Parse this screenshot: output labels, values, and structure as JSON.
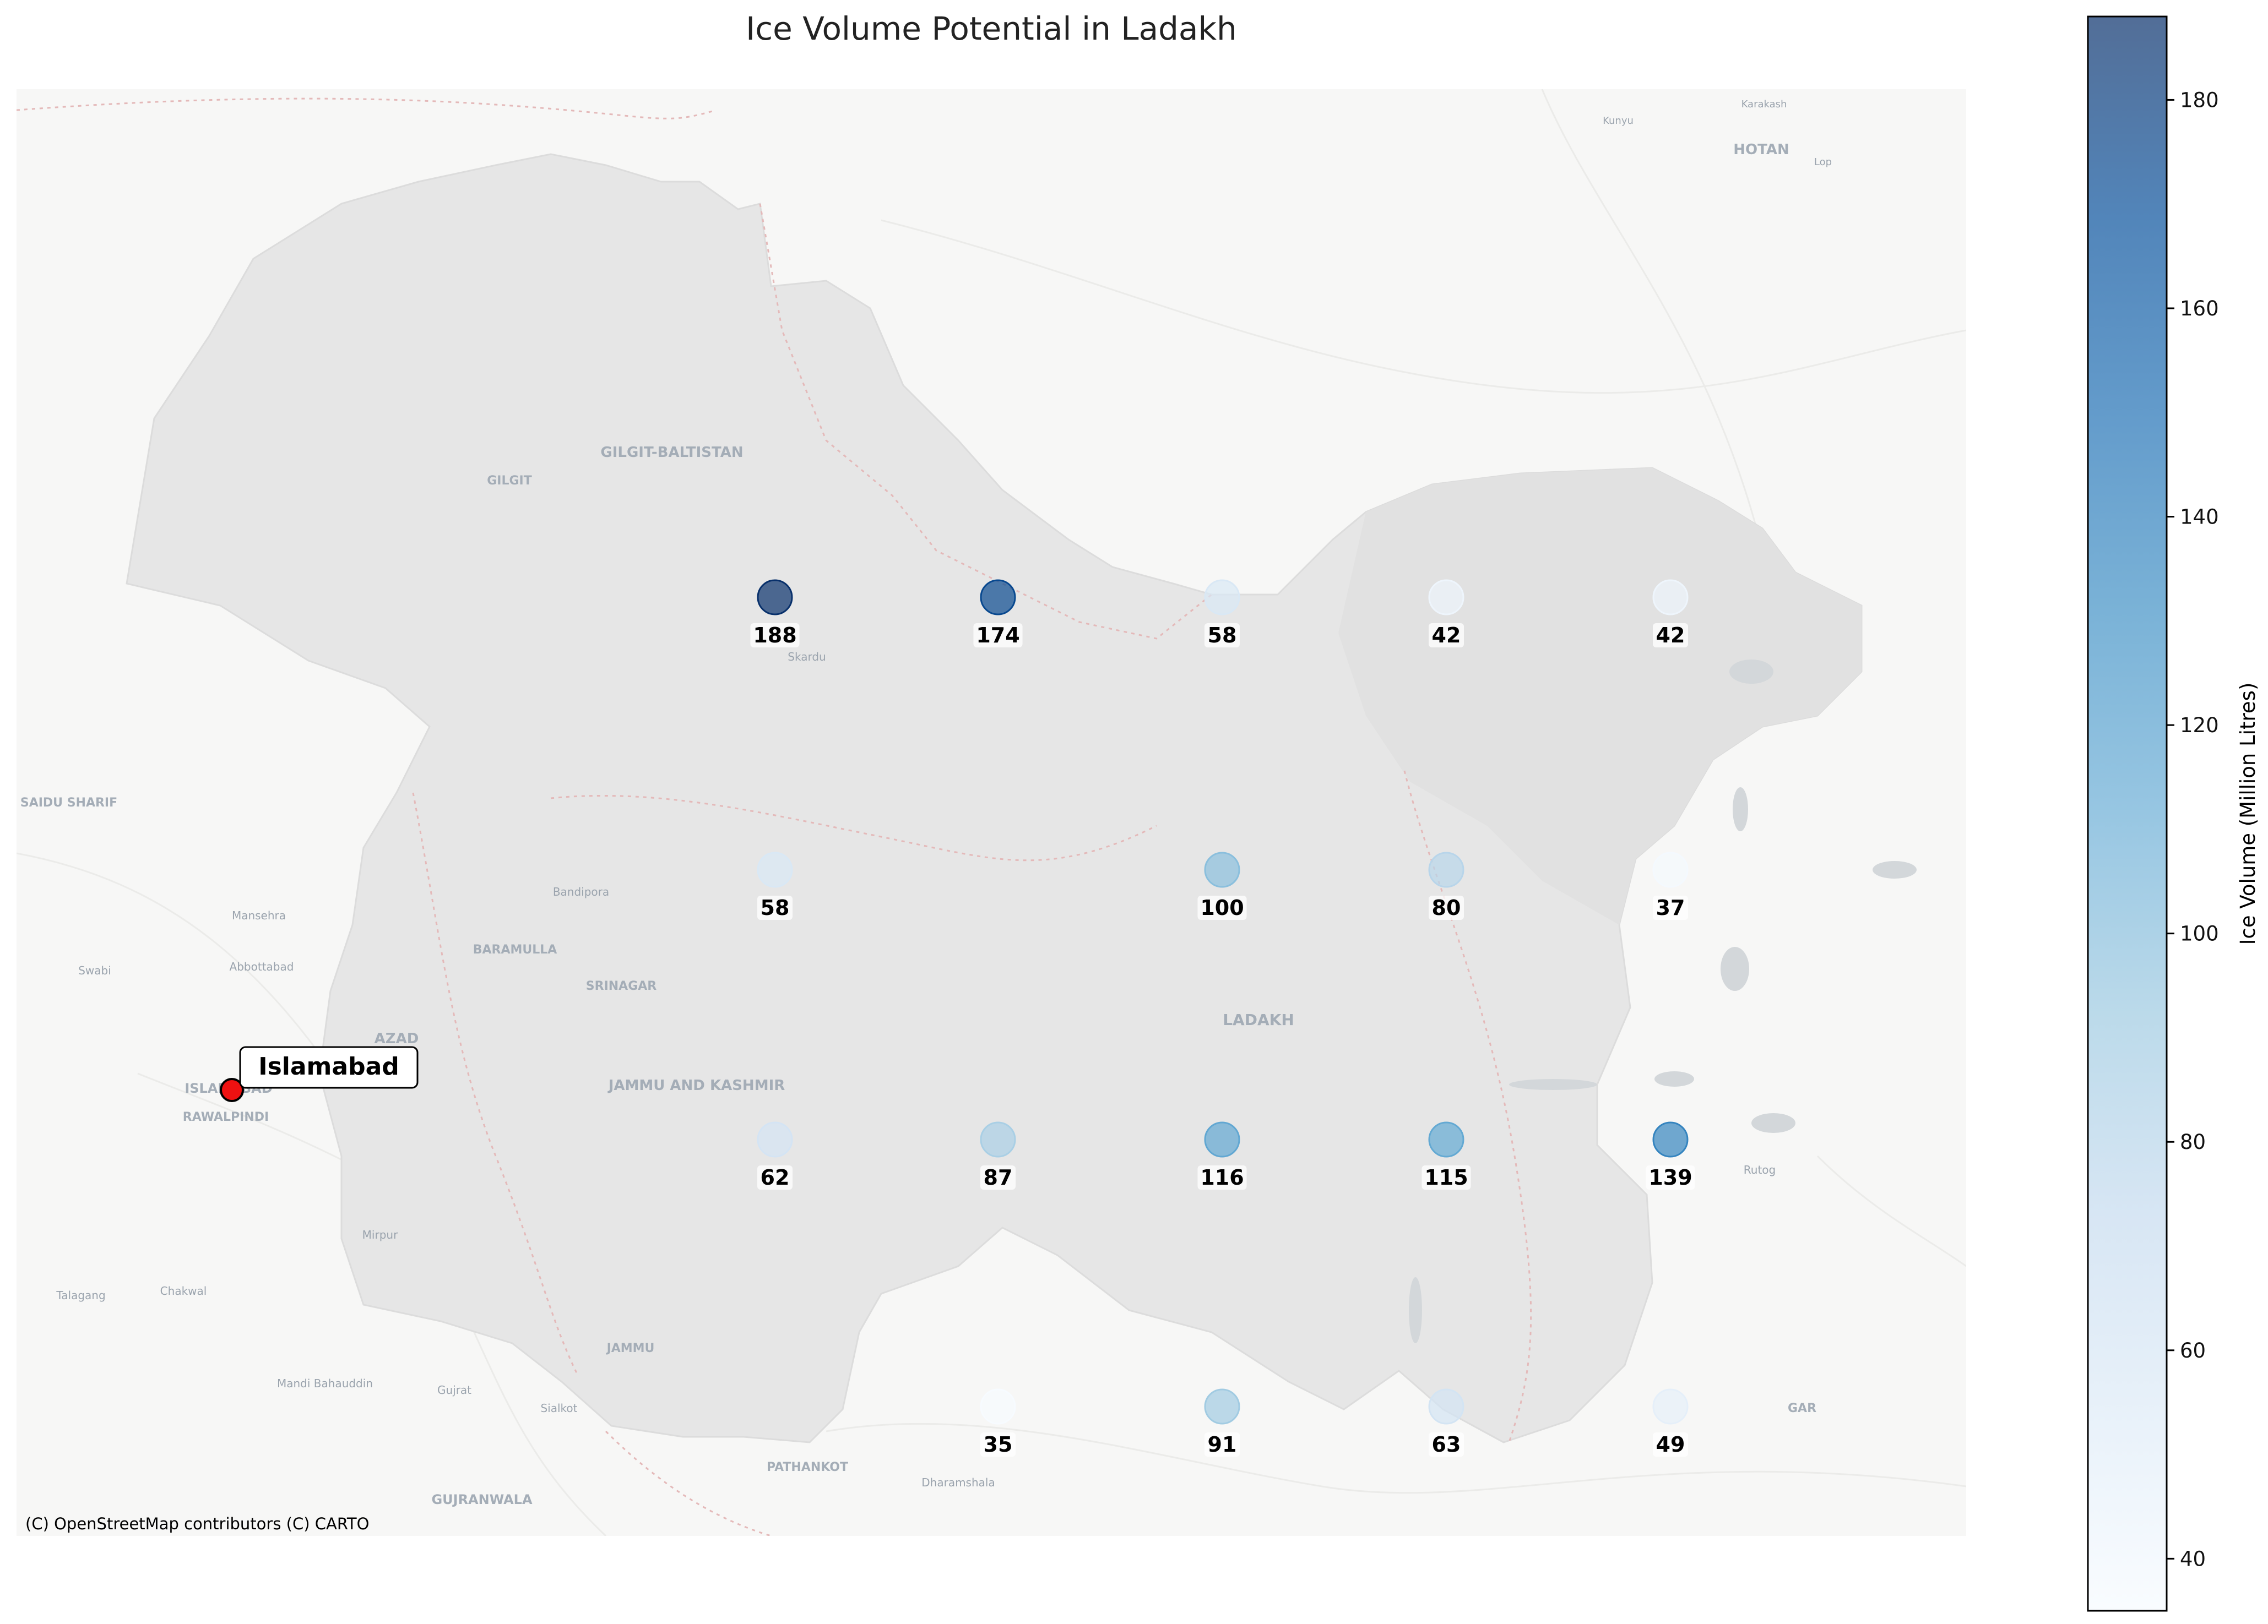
{
  "title": "Ice Volume Potential in Ladakh",
  "attribution": "(C) OpenStreetMap contributors (C) CARTO",
  "colorbar": {
    "label": "Ice Volume (Million Litres)",
    "range": [
      35,
      188
    ],
    "ticks": [
      40,
      60,
      80,
      100,
      120,
      140,
      160,
      180
    ],
    "colormap": "Blues"
  },
  "marker": {
    "label": "Islamabad",
    "color": "#ee1111"
  },
  "basemap_labels": {
    "gilgit_baltistan": "GILGIT-BALTISTAN",
    "gilgit": "GILGIT",
    "skardu": "Skardu",
    "ladakh": "LADAKH",
    "jammu_kashmir": "JAMMU AND KASHMIR",
    "azad": "AZAD",
    "baramulla": "BARAMULLA",
    "srinagar": "SRINAGAR",
    "bandipora": "Bandipora",
    "jammu": "JAMMU",
    "mirpur": "Mirpur",
    "saidu_sharif": "SAIDU SHARIF",
    "mansehra": "Mansehra",
    "abbottabad": "Abbottabad",
    "swabi": "Swabi",
    "islamabad_base": "ISLAMABAD",
    "rawalpindi": "RAWALPINDI",
    "talagang": "Talagang",
    "chakwal": "Chakwal",
    "mandi_bahauddin": "Mandi Bahauddin",
    "gujrat": "Gujrat",
    "sialkot": "Sialkot",
    "gujranwala": "GUJRANWALA",
    "pathankot": "PATHANKOT",
    "dharamshala": "Dharamshala",
    "hotan": "HOTAN",
    "karakash": "Karakash",
    "kunyu": "Kunyu",
    "lop": "Lop",
    "rutog": "Rutog",
    "gar": "GAR"
  },
  "chart_data": {
    "type": "scatter",
    "title": "Ice Volume Potential in Ladakh",
    "colorbar_label": "Ice Volume (Million Litres)",
    "vmin": 35,
    "vmax": 188,
    "grid": {
      "columns": 5,
      "rows": 4
    },
    "points": [
      {
        "col": 0,
        "row": 0,
        "value": 188
      },
      {
        "col": 1,
        "row": 0,
        "value": 174
      },
      {
        "col": 2,
        "row": 0,
        "value": 58
      },
      {
        "col": 3,
        "row": 0,
        "value": 42
      },
      {
        "col": 4,
        "row": 0,
        "value": 42
      },
      {
        "col": 0,
        "row": 1,
        "value": 58
      },
      {
        "col": 2,
        "row": 1,
        "value": 100
      },
      {
        "col": 3,
        "row": 1,
        "value": 80
      },
      {
        "col": 4,
        "row": 1,
        "value": 37
      },
      {
        "col": 0,
        "row": 2,
        "value": 62
      },
      {
        "col": 1,
        "row": 2,
        "value": 87
      },
      {
        "col": 2,
        "row": 2,
        "value": 116
      },
      {
        "col": 3,
        "row": 2,
        "value": 115
      },
      {
        "col": 4,
        "row": 2,
        "value": 139
      },
      {
        "col": 1,
        "row": 3,
        "value": 35
      },
      {
        "col": 2,
        "row": 3,
        "value": 91
      },
      {
        "col": 3,
        "row": 3,
        "value": 63
      },
      {
        "col": 4,
        "row": 3,
        "value": 49
      }
    ]
  }
}
